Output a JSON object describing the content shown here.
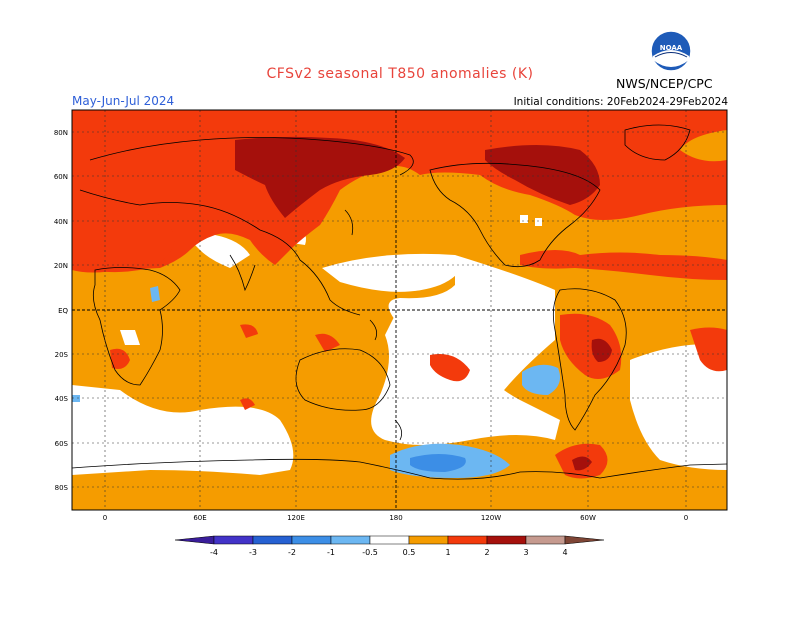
{
  "header": {
    "title": "CFSv2 seasonal T850 anomalies (K)",
    "period": "May-Jun-Jul 2024",
    "initial_conditions": "Initial conditions: 20Feb2024-29Feb2024",
    "agency": "NWS/NCEP/CPC",
    "logo_text": "NOAA"
  },
  "map": {
    "lat_labels": [
      "80N",
      "60N",
      "40N",
      "20N",
      "EQ",
      "20S",
      "40S",
      "60S",
      "80S"
    ],
    "lon_labels": [
      "0",
      "60E",
      "120E",
      "180",
      "120W",
      "60W",
      "0"
    ],
    "colors": {
      "positive_0_5_1": "#f59c00",
      "positive_1_2": "#f33a0c",
      "positive_2_3": "#a5100c",
      "positive_3_4": "#c69a8f",
      "negative_0_5_1": "#6cb7f2",
      "negative_1_2": "#3c8ee6"
    }
  },
  "colorbar": {
    "labels": [
      "-4",
      "-3",
      "-2",
      "-1",
      "-0.5",
      "0.5",
      "1",
      "2",
      "3",
      "4"
    ],
    "colors": [
      "#3a1d9a",
      "#4233c8",
      "#2661d2",
      "#3c8ee6",
      "#6cb7f2",
      "#ffffff",
      "#f59c00",
      "#f33a0c",
      "#a5100c",
      "#c69a8f",
      "#7e4535"
    ]
  }
}
